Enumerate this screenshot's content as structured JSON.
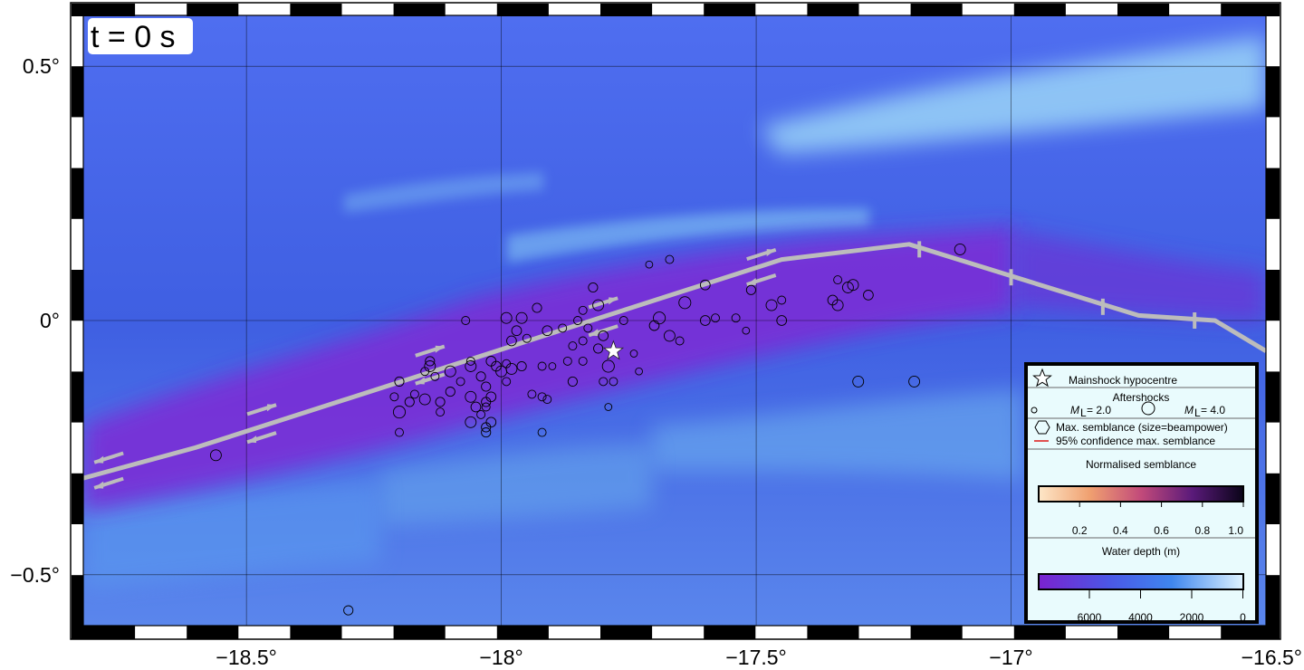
{
  "time_label": "t =  0 s",
  "axes": {
    "x_ticks": [
      {
        "value": -18.5,
        "label": "−18.5°"
      },
      {
        "value": -18.0,
        "label": "−18°"
      },
      {
        "value": -17.5,
        "label": "−17.5°"
      },
      {
        "value": -17.0,
        "label": "−17°"
      },
      {
        "value": -16.5,
        "label": "−16.5°"
      }
    ],
    "y_ticks": [
      {
        "value": 0.5,
        "label": "0.5°"
      },
      {
        "value": 0.0,
        "label": "0°"
      },
      {
        "value": -0.5,
        "label": "−0.5°"
      }
    ],
    "lon_range": [
      -18.82,
      -16.5
    ],
    "lat_range": [
      -0.6,
      0.6
    ]
  },
  "colors": {
    "deep_water": "#3f5fe0",
    "trough": "#7a2fd6",
    "shallow": "#8fd0f5",
    "fault": "#bcbcbc",
    "star": "#ffffff"
  },
  "mainshock": {
    "lon": -17.78,
    "lat": -0.06
  },
  "fault_trace": [
    [
      -18.82,
      -0.31
    ],
    [
      -18.6,
      -0.25
    ],
    [
      -17.45,
      0.12
    ],
    [
      -17.2,
      0.15
    ],
    [
      -16.75,
      0.01
    ],
    [
      -16.6,
      0.0
    ],
    [
      -16.5,
      -0.06
    ]
  ],
  "fault_ticks": [
    [
      -17.18,
      0.14
    ],
    [
      -17.0,
      0.085
    ],
    [
      -16.82,
      0.027
    ],
    [
      -16.64,
      0.0
    ]
  ],
  "shear_arrows": [
    {
      "lon": -18.77,
      "lat": -0.27,
      "dir": "left"
    },
    {
      "lon": -18.77,
      "lat": -0.32,
      "dir": "left"
    },
    {
      "lon": -18.47,
      "lat": -0.175,
      "dir": "right"
    },
    {
      "lon": -18.47,
      "lat": -0.23,
      "dir": "left"
    },
    {
      "lon": -18.14,
      "lat": -0.06,
      "dir": "right"
    },
    {
      "lon": -18.14,
      "lat": -0.115,
      "dir": "left"
    },
    {
      "lon": -17.8,
      "lat": 0.035,
      "dir": "right"
    },
    {
      "lon": -17.8,
      "lat": -0.02,
      "dir": "left"
    },
    {
      "lon": -17.49,
      "lat": 0.13,
      "dir": "right"
    },
    {
      "lon": -17.49,
      "lat": 0.08,
      "dir": "left"
    }
  ],
  "aftershocks": [
    {
      "lon": -17.71,
      "lat": 0.11,
      "mag": 2.3
    },
    {
      "lon": -17.67,
      "lat": 0.12,
      "mag": 2.5
    },
    {
      "lon": -17.1,
      "lat": 0.14,
      "mag": 3.0
    },
    {
      "lon": -17.34,
      "lat": 0.08,
      "mag": 2.5
    },
    {
      "lon": -17.31,
      "lat": 0.07,
      "mag": 3.0
    },
    {
      "lon": -17.32,
      "lat": 0.065,
      "mag": 3.0
    },
    {
      "lon": -17.28,
      "lat": 0.05,
      "mag": 2.8
    },
    {
      "lon": -17.35,
      "lat": 0.04,
      "mag": 2.8
    },
    {
      "lon": -17.34,
      "lat": 0.03,
      "mag": 3.0
    },
    {
      "lon": -17.45,
      "lat": 0.04,
      "mag": 2.5
    },
    {
      "lon": -17.47,
      "lat": 0.03,
      "mag": 3.0
    },
    {
      "lon": -17.51,
      "lat": 0.06,
      "mag": 2.7
    },
    {
      "lon": -17.6,
      "lat": 0.07,
      "mag": 2.8
    },
    {
      "lon": -17.64,
      "lat": 0.035,
      "mag": 3.2
    },
    {
      "lon": -17.58,
      "lat": 0.005,
      "mag": 2.5
    },
    {
      "lon": -17.6,
      "lat": 0.0,
      "mag": 2.8
    },
    {
      "lon": -17.54,
      "lat": 0.005,
      "mag": 2.5
    },
    {
      "lon": -17.45,
      "lat": 0.0,
      "mag": 2.8
    },
    {
      "lon": -17.52,
      "lat": -0.02,
      "mag": 2.3
    },
    {
      "lon": -17.69,
      "lat": 0.005,
      "mag": 3.2
    },
    {
      "lon": -17.7,
      "lat": -0.01,
      "mag": 2.8
    },
    {
      "lon": -17.67,
      "lat": -0.03,
      "mag": 3.0
    },
    {
      "lon": -17.65,
      "lat": -0.04,
      "mag": 2.5
    },
    {
      "lon": -17.76,
      "lat": 0.0,
      "mag": 2.5
    },
    {
      "lon": -17.81,
      "lat": 0.03,
      "mag": 3.0
    },
    {
      "lon": -17.82,
      "lat": 0.065,
      "mag": 2.7
    },
    {
      "lon": -17.84,
      "lat": 0.02,
      "mag": 2.5
    },
    {
      "lon": -17.85,
      "lat": 0.0,
      "mag": 2.5
    },
    {
      "lon": -17.88,
      "lat": -0.015,
      "mag": 2.5
    },
    {
      "lon": -17.91,
      "lat": -0.02,
      "mag": 2.8
    },
    {
      "lon": -17.83,
      "lat": -0.015,
      "mag": 2.5
    },
    {
      "lon": -17.8,
      "lat": -0.03,
      "mag": 2.8
    },
    {
      "lon": -17.84,
      "lat": -0.04,
      "mag": 2.5
    },
    {
      "lon": -17.86,
      "lat": -0.05,
      "mag": 2.5
    },
    {
      "lon": -17.81,
      "lat": -0.055,
      "mag": 2.7
    },
    {
      "lon": -17.74,
      "lat": -0.065,
      "mag": 2.3
    },
    {
      "lon": -17.79,
      "lat": -0.09,
      "mag": 3.2
    },
    {
      "lon": -17.84,
      "lat": -0.08,
      "mag": 2.5
    },
    {
      "lon": -17.87,
      "lat": -0.08,
      "mag": 2.5
    },
    {
      "lon": -17.93,
      "lat": 0.025,
      "mag": 2.7
    },
    {
      "lon": -17.96,
      "lat": 0.005,
      "mag": 3.0
    },
    {
      "lon": -17.97,
      "lat": -0.02,
      "mag": 2.8
    },
    {
      "lon": -17.98,
      "lat": -0.04,
      "mag": 2.8
    },
    {
      "lon": -17.95,
      "lat": -0.035,
      "mag": 2.5
    },
    {
      "lon": -17.99,
      "lat": 0.005,
      "mag": 3.0
    },
    {
      "lon": -18.07,
      "lat": 0.0,
      "mag": 2.5
    },
    {
      "lon": -17.92,
      "lat": -0.09,
      "mag": 2.5
    },
    {
      "lon": -17.96,
      "lat": -0.09,
      "mag": 2.7
    },
    {
      "lon": -17.98,
      "lat": -0.095,
      "mag": 3.0
    },
    {
      "lon": -17.99,
      "lat": -0.085,
      "mag": 2.5
    },
    {
      "lon": -18.02,
      "lat": -0.08,
      "mag": 2.8
    },
    {
      "lon": -18.01,
      "lat": -0.09,
      "mag": 2.8
    },
    {
      "lon": -18.0,
      "lat": -0.1,
      "mag": 3.0
    },
    {
      "lon": -18.04,
      "lat": -0.11,
      "mag": 2.7
    },
    {
      "lon": -17.99,
      "lat": -0.12,
      "mag": 2.5
    },
    {
      "lon": -18.06,
      "lat": -0.08,
      "mag": 2.5
    },
    {
      "lon": -18.06,
      "lat": -0.09,
      "mag": 3.0
    },
    {
      "lon": -18.03,
      "lat": -0.13,
      "mag": 2.7
    },
    {
      "lon": -18.1,
      "lat": -0.1,
      "mag": 3.0
    },
    {
      "lon": -18.08,
      "lat": -0.12,
      "mag": 2.5
    },
    {
      "lon": -18.1,
      "lat": -0.14,
      "mag": 2.7
    },
    {
      "lon": -18.06,
      "lat": -0.15,
      "mag": 3.0
    },
    {
      "lon": -18.03,
      "lat": -0.16,
      "mag": 2.7
    },
    {
      "lon": -18.02,
      "lat": -0.15,
      "mag": 2.8
    },
    {
      "lon": -18.03,
      "lat": -0.17,
      "mag": 2.5
    },
    {
      "lon": -18.05,
      "lat": -0.17,
      "mag": 2.8
    },
    {
      "lon": -18.04,
      "lat": -0.185,
      "mag": 2.5
    },
    {
      "lon": -18.06,
      "lat": -0.2,
      "mag": 3.0
    },
    {
      "lon": -18.02,
      "lat": -0.2,
      "mag": 2.8
    },
    {
      "lon": -18.03,
      "lat": -0.21,
      "mag": 2.7
    },
    {
      "lon": -18.03,
      "lat": -0.22,
      "mag": 2.7
    },
    {
      "lon": -18.12,
      "lat": -0.18,
      "mag": 2.5
    },
    {
      "lon": -18.12,
      "lat": -0.16,
      "mag": 2.7
    },
    {
      "lon": -18.15,
      "lat": -0.155,
      "mag": 3.0
    },
    {
      "lon": -18.18,
      "lat": -0.16,
      "mag": 2.7
    },
    {
      "lon": -18.2,
      "lat": -0.18,
      "mag": 3.2
    },
    {
      "lon": -18.21,
      "lat": -0.15,
      "mag": 2.5
    },
    {
      "lon": -18.2,
      "lat": -0.12,
      "mag": 2.7
    },
    {
      "lon": -18.17,
      "lat": -0.145,
      "mag": 2.5
    },
    {
      "lon": -18.14,
      "lat": -0.09,
      "mag": 3.0
    },
    {
      "lon": -18.14,
      "lat": -0.08,
      "mag": 2.7
    },
    {
      "lon": -18.15,
      "lat": -0.1,
      "mag": 2.5
    },
    {
      "lon": -18.13,
      "lat": -0.11,
      "mag": 2.5
    },
    {
      "lon": -18.2,
      "lat": -0.22,
      "mag": 2.5
    },
    {
      "lon": -17.92,
      "lat": -0.15,
      "mag": 2.5
    },
    {
      "lon": -17.94,
      "lat": -0.145,
      "mag": 2.5
    },
    {
      "lon": -17.91,
      "lat": -0.155,
      "mag": 2.5
    },
    {
      "lon": -17.9,
      "lat": -0.09,
      "mag": 2.3
    },
    {
      "lon": -17.86,
      "lat": -0.12,
      "mag": 2.7
    },
    {
      "lon": -17.8,
      "lat": -0.12,
      "mag": 2.5
    },
    {
      "lon": -17.78,
      "lat": -0.12,
      "mag": 2.5
    },
    {
      "lon": -17.73,
      "lat": -0.1,
      "mag": 2.3
    },
    {
      "lon": -17.79,
      "lat": -0.17,
      "mag": 2.3
    },
    {
      "lon": -17.92,
      "lat": -0.22,
      "mag": 2.5
    },
    {
      "lon": -17.3,
      "lat": -0.12,
      "mag": 3.0
    },
    {
      "lon": -17.19,
      "lat": -0.12,
      "mag": 3.0
    },
    {
      "lon": -18.56,
      "lat": -0.265,
      "mag": 3.0
    },
    {
      "lon": -18.3,
      "lat": -0.57,
      "mag": 2.7
    }
  ],
  "legend": {
    "mainshock_label": "Mainshock hypocentre",
    "aftershocks_title": "Aftershocks",
    "ml_small_value": "= 2.0",
    "ml_large_value": "= 4.0",
    "ml_symbol": "M",
    "ml_subscript": "L",
    "semblance_label": "Max. semblance (size=beampower)",
    "confidence_label": "95% confidence max. semblance",
    "semblance_title": "Normalised semblance",
    "semblance_ticks": [
      "0.2",
      "0.4",
      "0.6",
      "0.8",
      "1.0"
    ],
    "depth_title": "Water depth (m)",
    "depth_ticks": [
      "6000",
      "4000",
      "2000",
      "0"
    ]
  }
}
